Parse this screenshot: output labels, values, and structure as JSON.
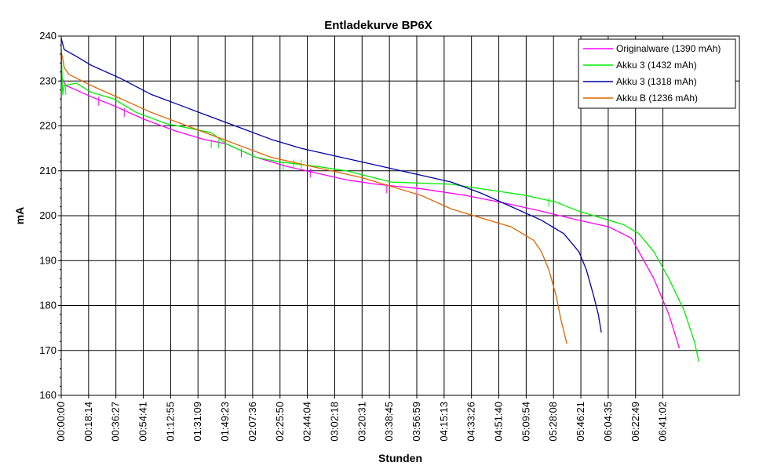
{
  "chart_data": {
    "type": "line",
    "title": "Entladekurve BP6X",
    "xlabel": "Stunden",
    "ylabel": "mA",
    "ylim": [
      160,
      240
    ],
    "yticks": [
      160,
      170,
      180,
      190,
      200,
      210,
      220,
      230,
      240
    ],
    "xlim_minutes": [
      0,
      452
    ],
    "xticks": [
      "00:00:00",
      "00:18:14",
      "00:36:27",
      "00:54:41",
      "01:12:55",
      "01:31:09",
      "01:49:23",
      "02:07:36",
      "02:25:50",
      "02:44:04",
      "03:02:18",
      "03:20:31",
      "03:38:45",
      "03:56:59",
      "04:15:13",
      "04:33:26",
      "04:51:40",
      "05:09:54",
      "05:28:08",
      "05:46:21",
      "06:04:35",
      "06:22:49",
      "06:41:02"
    ],
    "grid": true,
    "legend_position": "top-right",
    "series": [
      {
        "name": "Originalware (1390 mAh)",
        "color": "#ff00ff",
        "points": [
          [
            0,
            231
          ],
          [
            3,
            229
          ],
          [
            10,
            228
          ],
          [
            20,
            226.5
          ],
          [
            35,
            224.5
          ],
          [
            55,
            221.5
          ],
          [
            75,
            219
          ],
          [
            95,
            217
          ],
          [
            110,
            216
          ],
          [
            130,
            213
          ],
          [
            150,
            211
          ],
          [
            170,
            209.5
          ],
          [
            190,
            208
          ],
          [
            210,
            207
          ],
          [
            240,
            206
          ],
          [
            270,
            204.5
          ],
          [
            300,
            202.5
          ],
          [
            320,
            201
          ],
          [
            345,
            199
          ],
          [
            365,
            197.5
          ],
          [
            380,
            195
          ],
          [
            395,
            186
          ],
          [
            405,
            178
          ],
          [
            412,
            170.5
          ]
        ],
        "spikes": [
          [
            25,
            224.5
          ],
          [
            42,
            222
          ],
          [
            120,
            213
          ],
          [
            166,
            208.5
          ],
          [
            217,
            205
          ],
          [
            237,
            204.5
          ]
        ]
      },
      {
        "name": "Akku 3 (1432 mAh)",
        "color": "#00ee00",
        "points": [
          [
            0,
            237
          ],
          [
            1,
            227
          ],
          [
            2,
            229
          ],
          [
            10,
            229.5
          ],
          [
            20,
            227.5
          ],
          [
            35,
            226
          ],
          [
            50,
            223
          ],
          [
            70,
            220.5
          ],
          [
            85,
            219.5
          ],
          [
            100,
            218.5
          ],
          [
            110,
            216
          ],
          [
            130,
            213
          ],
          [
            145,
            212
          ],
          [
            170,
            211
          ],
          [
            190,
            210
          ],
          [
            220,
            207.5
          ],
          [
            260,
            207
          ],
          [
            290,
            205.5
          ],
          [
            310,
            204.5
          ],
          [
            330,
            203
          ],
          [
            345,
            201
          ],
          [
            360,
            199.5
          ],
          [
            375,
            198
          ],
          [
            385,
            196
          ],
          [
            395,
            192
          ],
          [
            405,
            186
          ],
          [
            415,
            179
          ],
          [
            422,
            172
          ],
          [
            425,
            167.5
          ]
        ],
        "spikes": [
          [
            3,
            227
          ],
          [
            100,
            215
          ],
          [
            105,
            215
          ],
          [
            148,
            210
          ],
          [
            155,
            210.5
          ],
          [
            160,
            210.5
          ],
          [
            325,
            202
          ]
        ]
      },
      {
        "name": "Akku 3 (1318 mAh)",
        "color": "#0000aa",
        "points": [
          [
            0,
            239.5
          ],
          [
            2,
            237
          ],
          [
            10,
            235.5
          ],
          [
            20,
            233.5
          ],
          [
            40,
            230.5
          ],
          [
            60,
            227
          ],
          [
            80,
            224.5
          ],
          [
            100,
            222
          ],
          [
            120,
            219.5
          ],
          [
            140,
            217
          ],
          [
            160,
            215
          ],
          [
            180,
            213.5
          ],
          [
            200,
            212
          ],
          [
            220,
            210.5
          ],
          [
            240,
            209
          ],
          [
            260,
            207.5
          ],
          [
            280,
            205
          ],
          [
            300,
            202
          ],
          [
            320,
            199
          ],
          [
            335,
            196
          ],
          [
            345,
            192
          ],
          [
            350,
            188
          ],
          [
            355,
            182
          ],
          [
            358,
            178
          ],
          [
            360,
            174
          ]
        ]
      },
      {
        "name": "Akku B (1236 mAh)",
        "color": "#dd6600",
        "points": [
          [
            0,
            236.5
          ],
          [
            1,
            235
          ],
          [
            2,
            233
          ],
          [
            5,
            231.5
          ],
          [
            20,
            229
          ],
          [
            40,
            226
          ],
          [
            60,
            223
          ],
          [
            80,
            220.5
          ],
          [
            100,
            218
          ],
          [
            120,
            215.5
          ],
          [
            140,
            213
          ],
          [
            160,
            211.5
          ],
          [
            180,
            210
          ],
          [
            200,
            208.5
          ],
          [
            220,
            206.5
          ],
          [
            240,
            204.5
          ],
          [
            260,
            201.5
          ],
          [
            280,
            199.5
          ],
          [
            300,
            197.5
          ],
          [
            310,
            195.5
          ],
          [
            315,
            194.5
          ],
          [
            320,
            192
          ],
          [
            325,
            188
          ],
          [
            330,
            182
          ],
          [
            333,
            177
          ],
          [
            337,
            171.5
          ]
        ]
      }
    ]
  }
}
